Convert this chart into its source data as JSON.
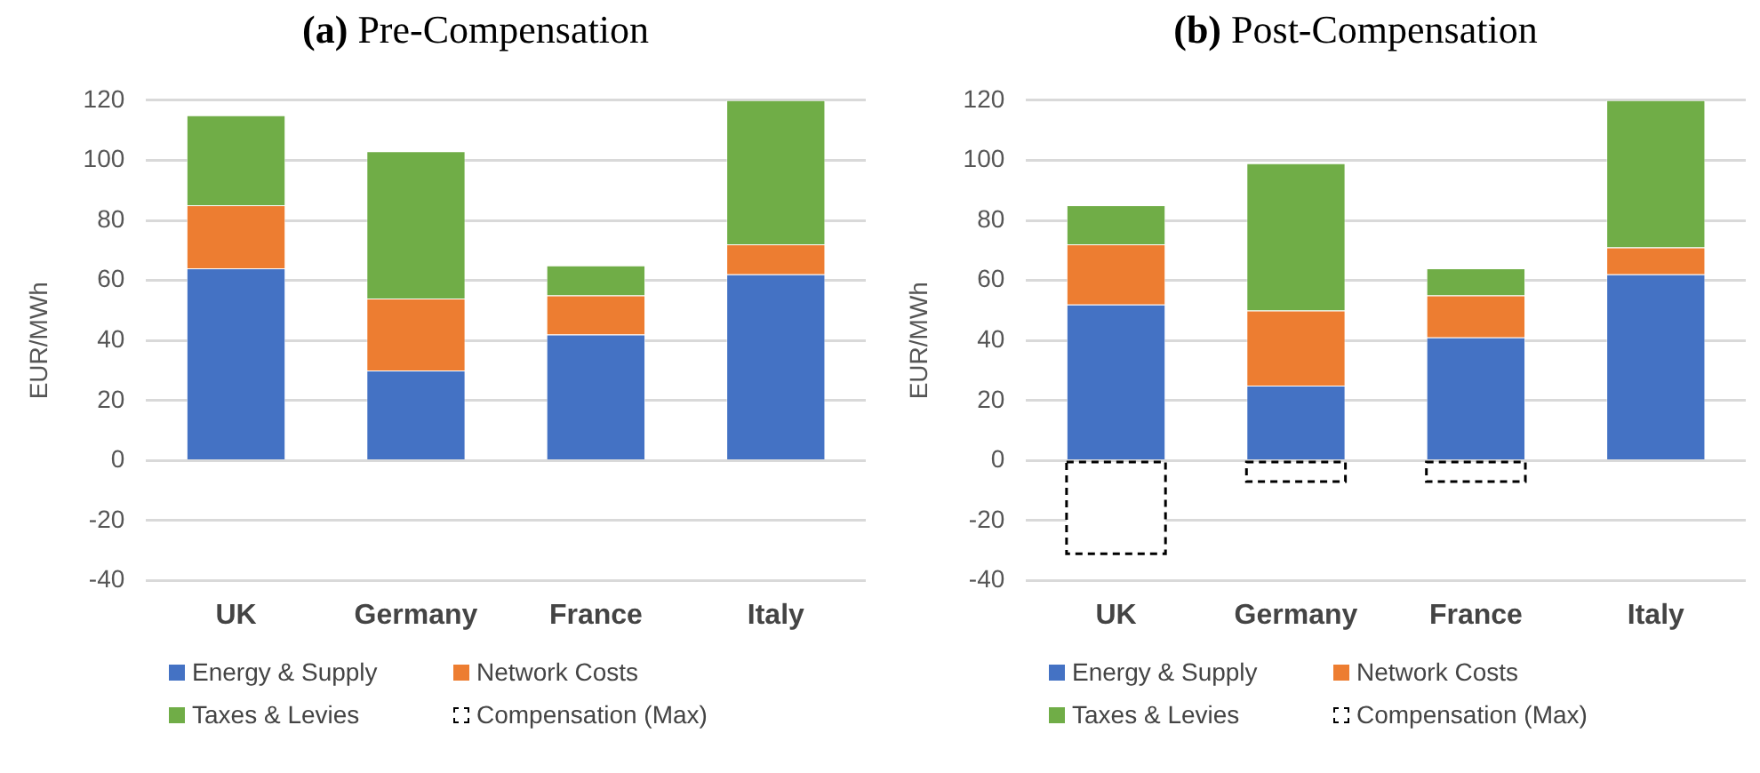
{
  "chart_data": [
    {
      "type": "bar",
      "title": "(a) Pre-Compensation",
      "ylabel": "EUR/MWh",
      "categories": [
        "UK",
        "Germany",
        "France",
        "Italy"
      ],
      "stacked": true,
      "legend": "bottom",
      "grid": "y",
      "ylim": [
        -40,
        120
      ],
      "yticks": [
        -40,
        -20,
        0,
        20,
        40,
        60,
        80,
        100,
        120
      ],
      "series": [
        {
          "name": "Energy & Supply",
          "color": "#4472c4",
          "values": [
            64,
            30,
            42,
            62
          ]
        },
        {
          "name": "Network Costs",
          "color": "#ed7d31",
          "values": [
            21,
            24,
            13,
            10
          ]
        },
        {
          "name": "Taxes & Levies",
          "color": "#70ad47",
          "values": [
            30,
            49,
            10,
            48
          ]
        },
        {
          "name": "Compensation (Max)",
          "color": "#000000",
          "line_style": "dashed",
          "values": [
            null,
            null,
            null,
            null
          ]
        }
      ]
    },
    {
      "type": "bar",
      "title": "(b) Post-Compensation",
      "ylabel": "EUR/MWh",
      "categories": [
        "UK",
        "Germany",
        "France",
        "Italy"
      ],
      "stacked": true,
      "legend": "bottom",
      "grid": "y",
      "ylim": [
        -40,
        120
      ],
      "yticks": [
        -40,
        -20,
        0,
        20,
        40,
        60,
        80,
        100,
        120
      ],
      "series": [
        {
          "name": "Energy & Supply",
          "color": "#4472c4",
          "values": [
            52,
            25,
            41,
            62
          ]
        },
        {
          "name": "Network Costs",
          "color": "#ed7d31",
          "values": [
            20,
            25,
            14,
            9
          ]
        },
        {
          "name": "Taxes & Levies",
          "color": "#70ad47",
          "values": [
            13,
            49,
            9,
            49
          ]
        },
        {
          "name": "Compensation (Max)",
          "color": "#000000",
          "line_style": "dashed",
          "values": [
            -31,
            -7,
            -7,
            null
          ]
        }
      ]
    }
  ]
}
